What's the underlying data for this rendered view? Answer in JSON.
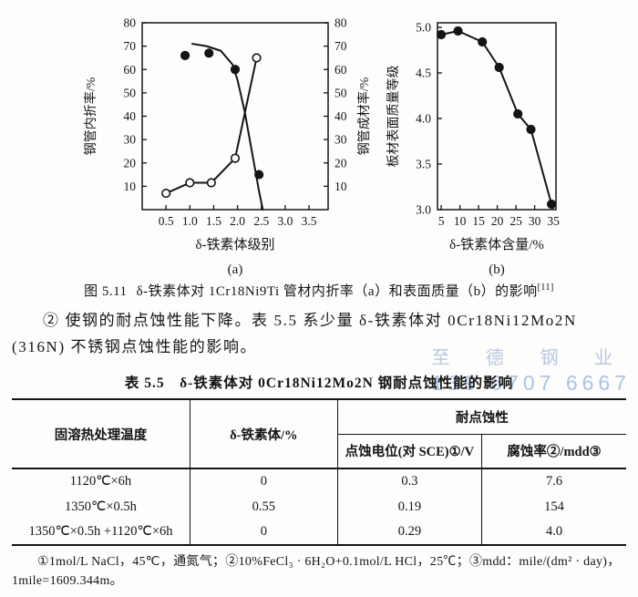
{
  "watermark": {
    "line1": "至 德 钢 业",
    "line2": "139 6707 6667",
    "color1": "#b9c7e2",
    "color2": "#a9c4ea"
  },
  "figure": {
    "caption_label": "图 5.11",
    "caption_text": "δ-铁素体对 1Cr18Ni9Ti 管材内折率（a）和表面质量（b）的影响",
    "caption_ref": "[11]"
  },
  "paragraph": {
    "line1": "② 使钢的耐点蚀性能下降。表 5.5 系少量 δ-铁素体对 0Cr18Ni12Mo2N",
    "line2": "(316N) 不锈钢点蚀性能的影响。"
  },
  "table": {
    "title": "表 5.5　δ-铁素体对 0Cr18Ni12Mo2N 钢耐点蚀性能的影响",
    "col1_header": "固溶热处理温度",
    "col2_header": "δ-铁素体/%",
    "group_header": "耐点蚀性",
    "sub_header1": "点蚀电位(对 SCE)①/V",
    "sub_header2": "腐蚀率②/mdd③",
    "rows": [
      {
        "treatment": "1120℃×6h",
        "ferrite": "0",
        "potential": "0.3",
        "rate": "7.6"
      },
      {
        "treatment": "1350℃×0.5h",
        "ferrite": "0.55",
        "potential": "0.19",
        "rate": "154"
      },
      {
        "treatment": "1350℃×0.5h +1120℃×6h",
        "ferrite": "0",
        "potential": "0.29",
        "rate": "4.0"
      }
    ],
    "footnotes": [
      "①1mol/L NaCl，45℃，通氮气；②10%FeCl₃ · 6H₂O+0.1mol/L HCl，25℃；③mdd：mile/(dm² · day)，",
      "1mile=1609.344m。"
    ]
  },
  "chart_data": [
    {
      "id": "a",
      "type": "line",
      "title": "",
      "xlabel": "δ-铁素体级别",
      "sublabel": "(a)",
      "y_left_label": "钢管内折率/%",
      "y_right_label": "钢管成材率/%",
      "x_ticks": [
        "0.5",
        "1.0",
        "1.5",
        "2.0",
        "2.5",
        "3.0",
        "3.5"
      ],
      "y_ticks": [
        "10",
        "20",
        "30",
        "40",
        "50",
        "60",
        "70",
        "80"
      ],
      "xlim": [
        0,
        3.9
      ],
      "ylim": [
        0,
        80
      ],
      "grid": false,
      "series": [
        {
          "name": "钢管内折率 (open circles, left axis)",
          "marker": "open",
          "line": "polyline",
          "points": [
            [
              0.5,
              7
            ],
            [
              1.0,
              11.5
            ],
            [
              1.45,
              11.5
            ],
            [
              1.95,
              22
            ],
            [
              2.4,
              65
            ]
          ]
        },
        {
          "name": "钢管成材率 (filled circles, right axis)",
          "marker": "filled",
          "line": "smooth",
          "points": [
            [
              0.9,
              66
            ],
            [
              1.4,
              67
            ],
            [
              1.95,
              60
            ],
            [
              2.45,
              15
            ]
          ],
          "curve": [
            [
              1.05,
              71
            ],
            [
              1.35,
              70
            ],
            [
              1.65,
              68
            ],
            [
              1.9,
              62
            ],
            [
              2.0,
              55.5
            ],
            [
              2.15,
              42
            ],
            [
              2.3,
              25
            ],
            [
              2.45,
              8
            ],
            [
              2.53,
              0
            ]
          ]
        }
      ]
    },
    {
      "id": "b",
      "type": "line",
      "title": "",
      "xlabel": "δ-铁素体含量/%",
      "sublabel": "(b)",
      "y_left_label": "板材表面质量等级",
      "y_right_label": "",
      "x_ticks": [
        "5",
        "10",
        "15",
        "20",
        "25",
        "30",
        "35"
      ],
      "y_ticks": [
        "3.0",
        "3.5",
        "4.0",
        "4.5",
        "5.0"
      ],
      "xlim": [
        4,
        35.7
      ],
      "ylim": [
        3.0,
        5.05
      ],
      "grid": false,
      "series": [
        {
          "name": "板材表面质量等级 (filled circles)",
          "marker": "filled",
          "line": "polyline",
          "points": [
            [
              5,
              4.92
            ],
            [
              9.5,
              4.96
            ],
            [
              16,
              4.84
            ],
            [
              20.5,
              4.56
            ],
            [
              25.5,
              4.05
            ],
            [
              29,
              3.88
            ],
            [
              34.5,
              3.06
            ]
          ]
        }
      ]
    }
  ]
}
